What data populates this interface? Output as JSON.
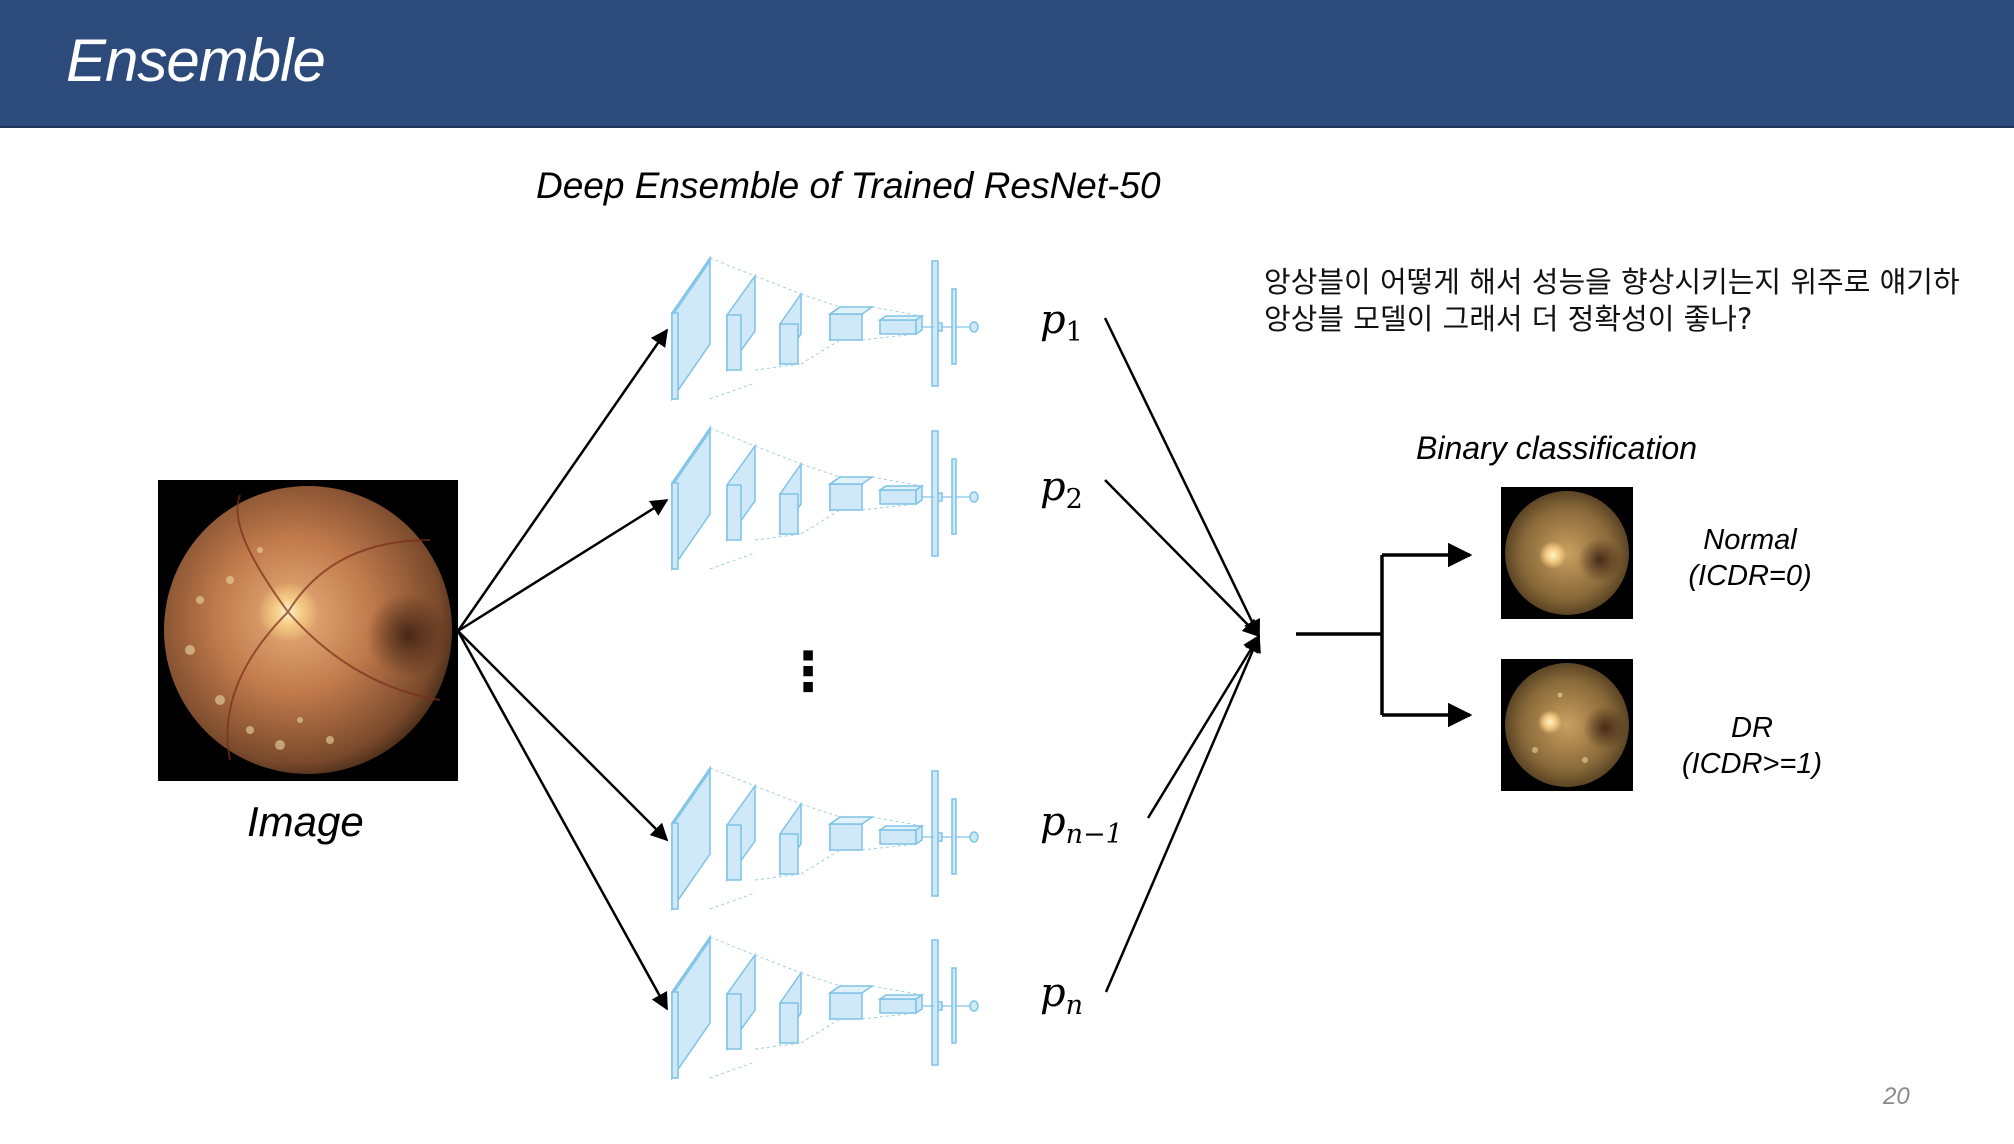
{
  "slide": {
    "title": "Ensemble",
    "page_number": "20"
  },
  "diagram": {
    "heading": "Deep Ensemble of Trained ResNet-50",
    "input_label": "Image",
    "outputs": [
      {
        "label": "p",
        "subscript": "1"
      },
      {
        "label": "p",
        "subscript": "2"
      },
      {
        "label": "p",
        "subscript": "n−1"
      },
      {
        "label": "p",
        "subscript": "n"
      }
    ],
    "ellipsis": "⋮",
    "classification": {
      "heading": "Binary classification",
      "classes": [
        {
          "name": "Normal",
          "detail": "(ICDR=0)"
        },
        {
          "name": "DR",
          "detail": "(ICDR>=1)"
        }
      ]
    }
  },
  "notes": {
    "line1": "앙상블이 어떻게 해서 성능을 향상시키는지 위주로 얘기하",
    "line2": "앙상블 모델이 그래서 더 정확성이 좋나?"
  },
  "colors": {
    "header_bg": "#2c4a7a",
    "network_fill": "#cfe9f8",
    "network_stroke": "#7ec2e6"
  }
}
